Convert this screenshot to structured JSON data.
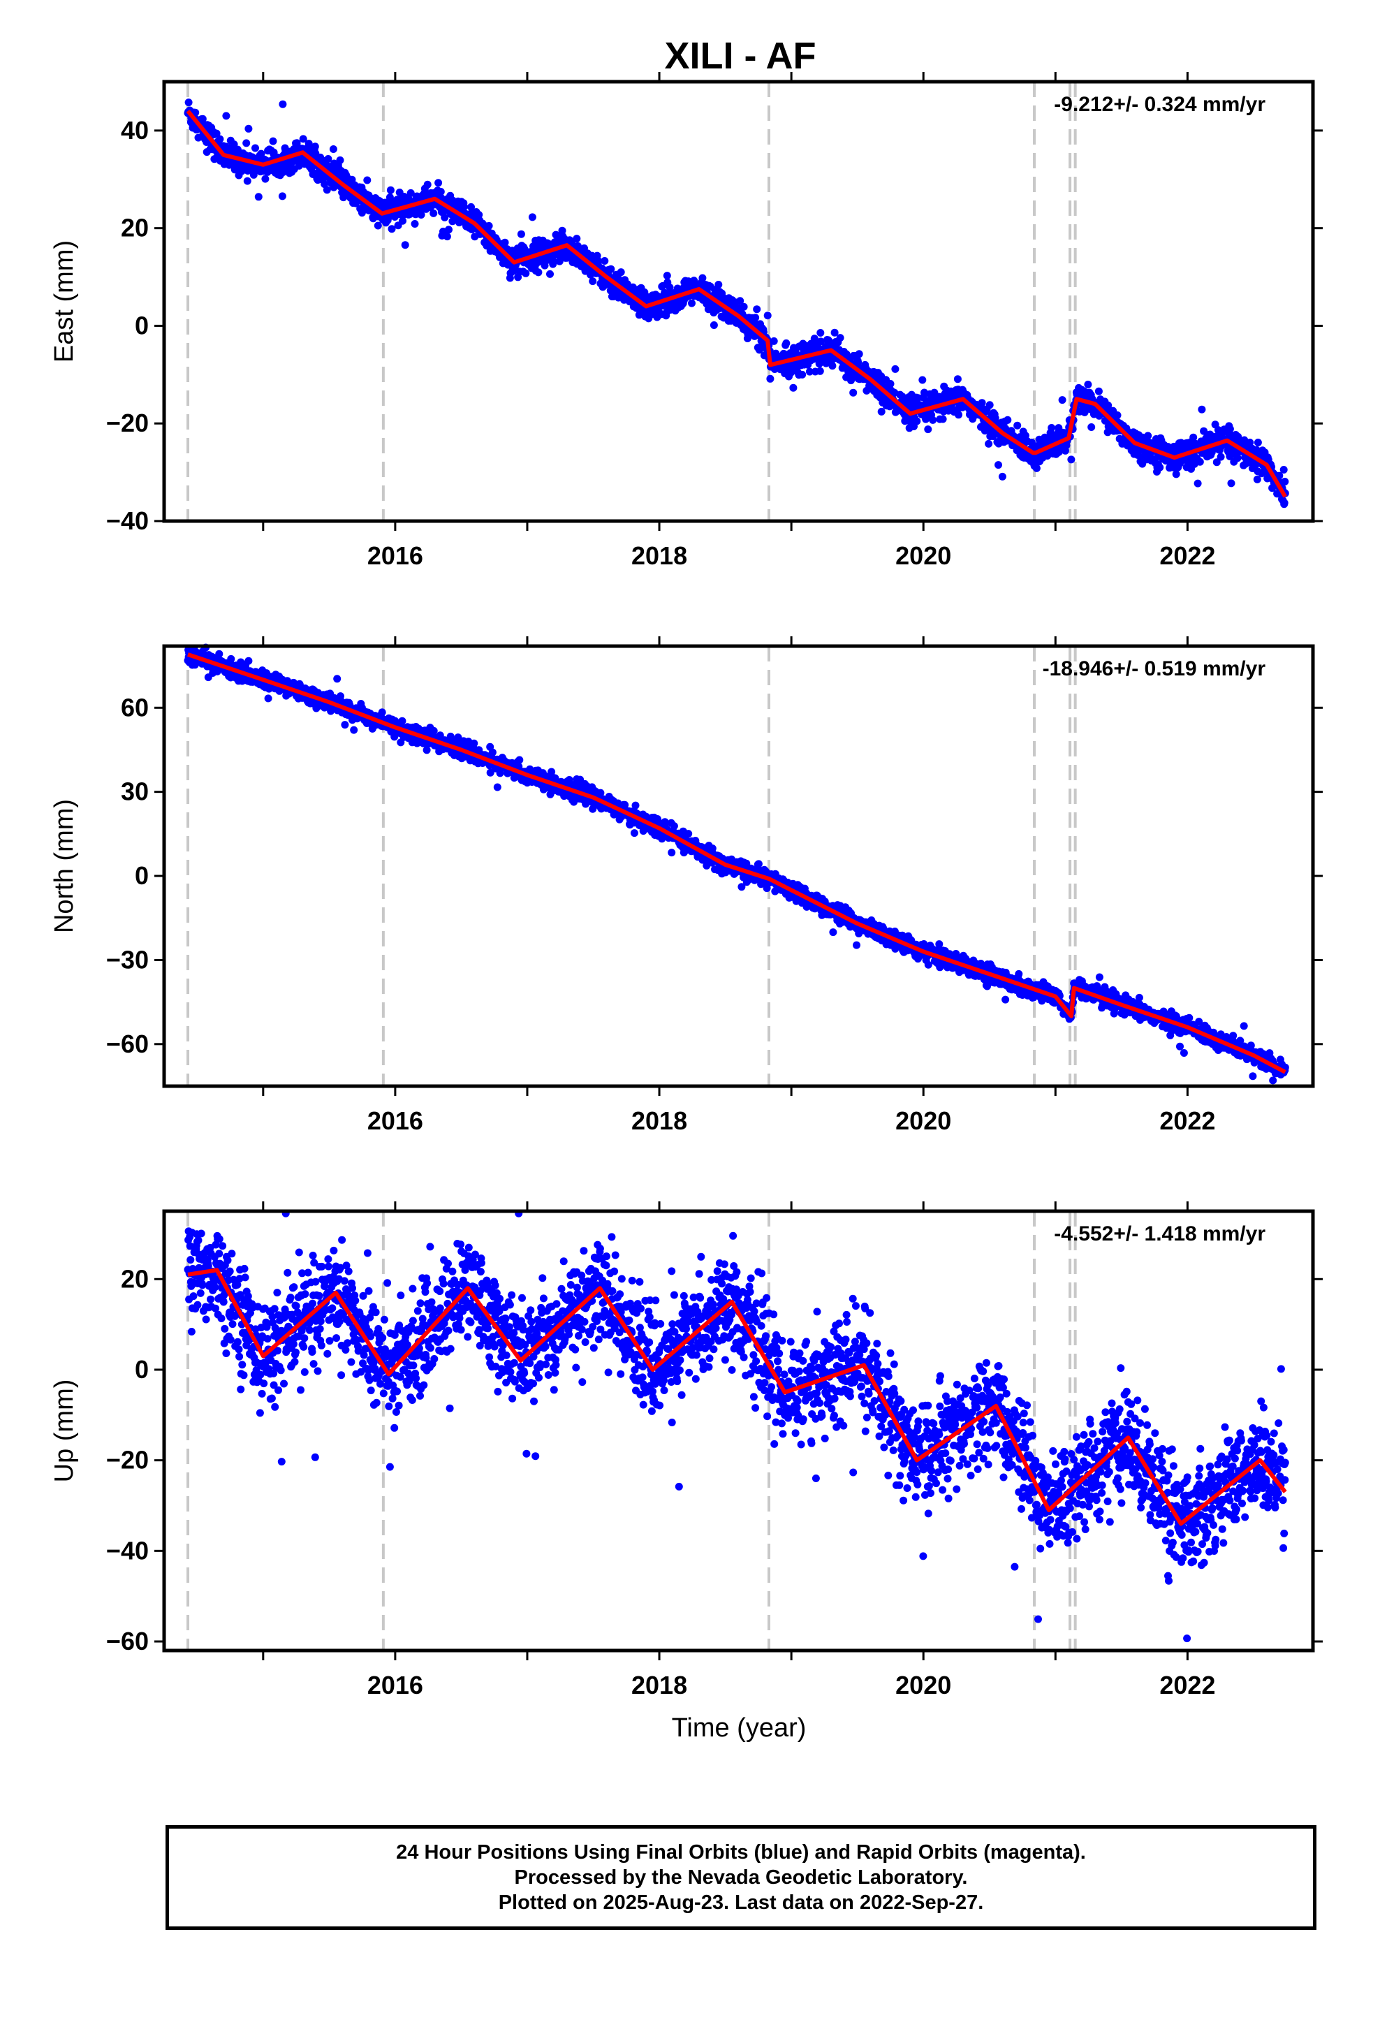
{
  "title": "XILI - AF",
  "time_axis_label": "Time (year)",
  "footer": {
    "line1": "24 Hour Positions Using Final Orbits (blue) and Rapid Orbits (magenta).",
    "line2": "Processed by the Nevada Geodetic Laboratory.",
    "line3": "Plotted on 2025-Aug-23. Last data on 2022-Sep-27."
  },
  "colors": {
    "points": "#0000ff",
    "fit": "#ff0000",
    "events": "#c8c8c8"
  },
  "chart_data": [
    {
      "type": "scatter",
      "ylabel": "East (mm)",
      "rate_text": "-9.212+/- 0.324 mm/yr",
      "xlim": [
        2014.25,
        2022.95
      ],
      "ylim": [
        -40,
        50
      ],
      "yticks": [
        -40,
        -20,
        0,
        20,
        40
      ],
      "xticks": [
        2016,
        2018,
        2020,
        2022
      ],
      "event_lines": [
        2014.43,
        2015.91,
        2018.83,
        2020.84,
        2021.11,
        2021.15
      ],
      "fit_model": {
        "trend_mm_per_yr": -9.212,
        "ref_year": 2014.43,
        "offset": 44.5,
        "annual_amp": 3.6,
        "annual_phase_peak": 0.3,
        "steps": [
          {
            "t": 2018.83,
            "d": -3.0
          },
          {
            "t": 2020.84,
            "d": -3.0
          },
          {
            "t": 2021.15,
            "d": 9.0
          }
        ]
      },
      "fit_line": {
        "x": [
          2014.43,
          2014.7,
          2015.0,
          2015.3,
          2015.6,
          2015.9,
          2016.3,
          2016.6,
          2016.9,
          2017.3,
          2017.6,
          2017.9,
          2018.3,
          2018.6,
          2018.82,
          2018.84,
          2019.3,
          2019.6,
          2019.9,
          2020.3,
          2020.6,
          2020.83,
          2020.85,
          2021.1,
          2021.16,
          2021.3,
          2021.6,
          2021.9,
          2022.3,
          2022.6,
          2022.74
        ],
        "y": [
          44,
          35,
          33,
          35.5,
          29,
          23,
          26,
          21,
          13,
          16.5,
          10,
          4,
          7.5,
          2,
          -3,
          -8,
          -5,
          -11,
          -18,
          -15,
          -22,
          -26,
          -26,
          -23,
          -15,
          -16,
          -24,
          -27,
          -23.5,
          -28.5,
          -35
        ]
      },
      "series": [
        {
          "name": "24 Hour Positions (final orbits)",
          "n_points": 2950,
          "noise_mm": 1.4
        }
      ]
    },
    {
      "type": "scatter",
      "ylabel": "North (mm)",
      "rate_text": "-18.946+/- 0.519 mm/yr",
      "xlim": [
        2014.25,
        2022.95
      ],
      "ylim": [
        -75,
        82
      ],
      "yticks": [
        -60,
        -30,
        0,
        30,
        60
      ],
      "xticks": [
        2016,
        2018,
        2020,
        2022
      ],
      "event_lines": [
        2014.43,
        2015.91,
        2018.83,
        2020.84,
        2021.11,
        2021.15
      ],
      "fit_line": {
        "x": [
          2014.43,
          2015.0,
          2015.5,
          2016.0,
          2016.5,
          2017.0,
          2017.5,
          2018.0,
          2018.5,
          2018.83,
          2019.5,
          2020.0,
          2020.5,
          2021.0,
          2021.12,
          2021.14,
          2021.5,
          2022.0,
          2022.5,
          2022.74
        ],
        "y": [
          79,
          70,
          62,
          53,
          45,
          36,
          28,
          17,
          4,
          -1,
          -17,
          -27,
          -35,
          -43,
          -50,
          -40,
          -46,
          -54,
          -64,
          -70
        ]
      },
      "series": [
        {
          "name": "24 Hour Positions (final orbits)",
          "n_points": 2950,
          "noise_mm": 1.5
        }
      ]
    },
    {
      "type": "scatter",
      "ylabel": "Up (mm)",
      "rate_text": "-4.552+/- 1.418 mm/yr",
      "xlim": [
        2014.25,
        2022.95
      ],
      "ylim": [
        -62,
        35
      ],
      "yticks": [
        -60,
        -40,
        -20,
        0,
        20
      ],
      "xticks": [
        2016,
        2018,
        2020,
        2022
      ],
      "event_lines": [
        2014.43,
        2015.91,
        2018.83,
        2020.84,
        2021.11,
        2021.15
      ],
      "fit_line": {
        "x": [
          2014.43,
          2014.65,
          2015.0,
          2015.55,
          2015.95,
          2016.55,
          2016.95,
          2017.55,
          2017.95,
          2018.55,
          2018.95,
          2019.55,
          2019.95,
          2020.55,
          2020.95,
          2021.55,
          2021.95,
          2022.55,
          2022.74
        ],
        "y": [
          21,
          22,
          3,
          17,
          -1,
          18,
          2,
          18,
          0,
          15,
          -5,
          1,
          -20,
          -8,
          -31,
          -15,
          -34,
          -20,
          -27
        ]
      },
      "series": [
        {
          "name": "24 Hour Positions (final orbits)",
          "n_points": 2950,
          "noise_mm": 5.5
        }
      ]
    }
  ]
}
